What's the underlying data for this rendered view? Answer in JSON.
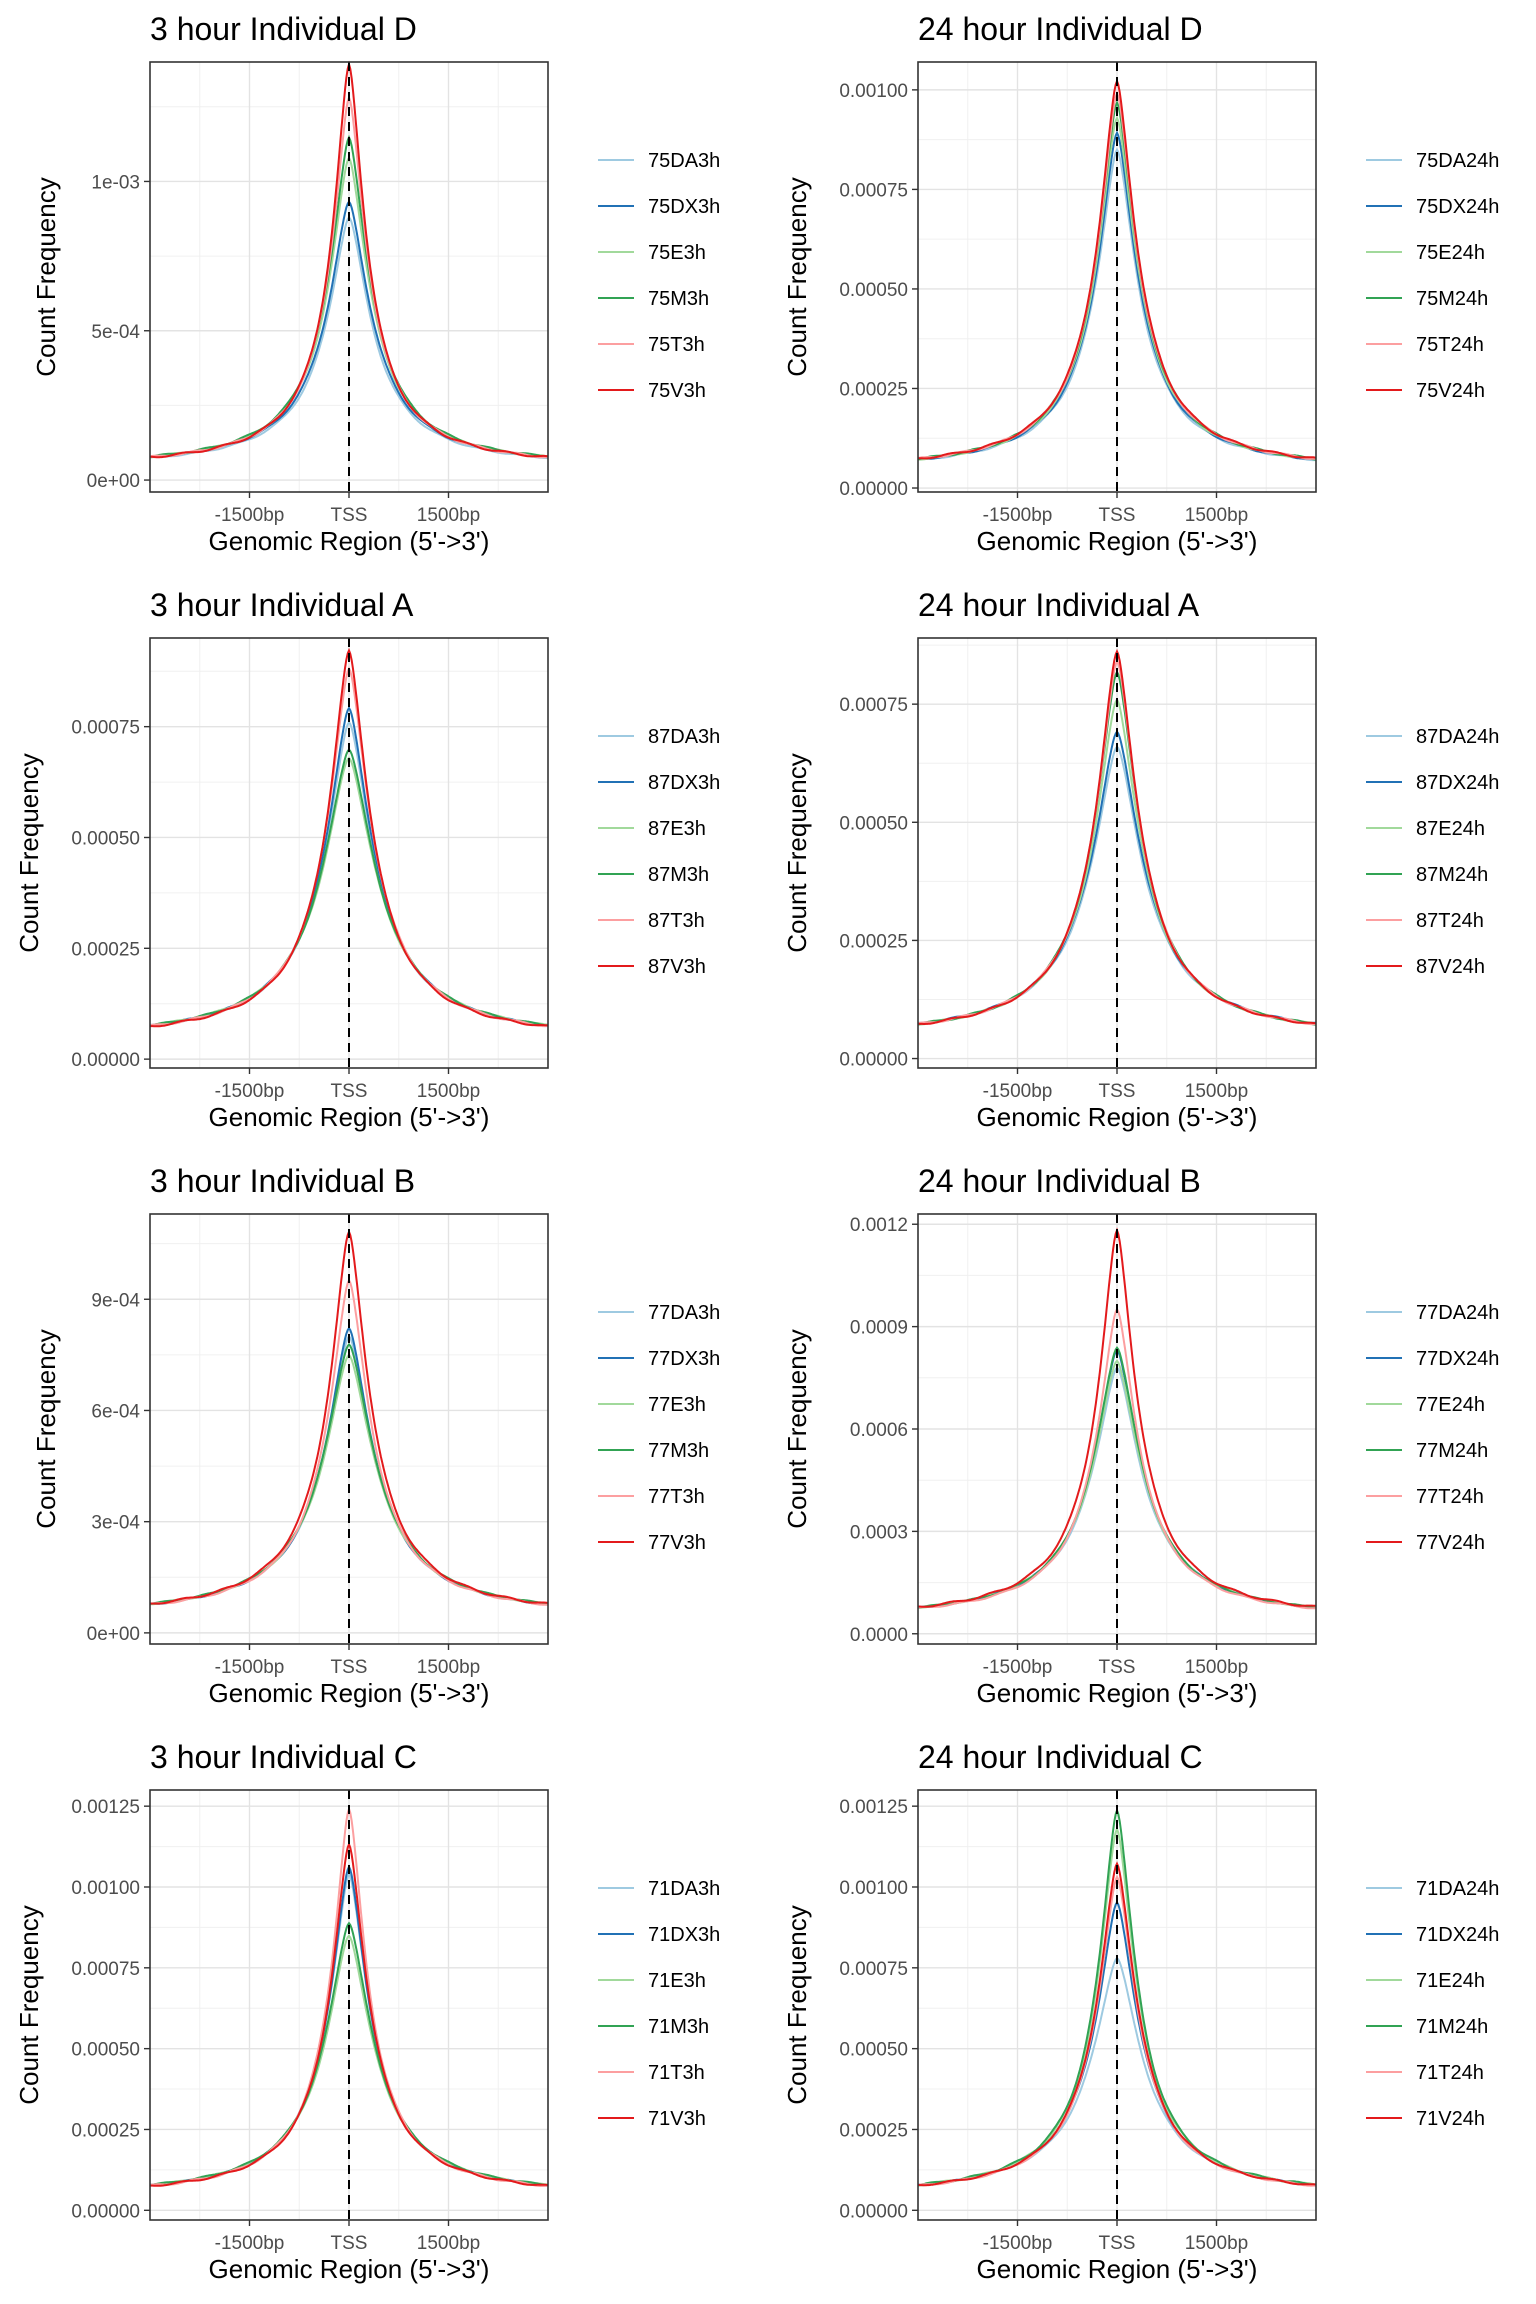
{
  "figure": {
    "colors": {
      "DA": "#9ecae1",
      "DX": "#2171b5",
      "E": "#a1d99b",
      "M": "#31a354",
      "T": "#fc9fa0",
      "V": "#e31a1c"
    },
    "x_tick_labels": [
      "-1500bp",
      "TSS",
      "1500bp"
    ],
    "x_tick_values": [
      -1500,
      0,
      1500
    ],
    "xlim": [
      -3000,
      3000
    ],
    "vline_x": 0,
    "xlabel": "Genomic Region (5'->3')",
    "ylabel": "Count Frequency"
  },
  "chart_data": [
    {
      "type": "line",
      "title": "3 hour Individual D",
      "ylim": [
        -4e-05,
        0.0014
      ],
      "y_ticks": [
        0,
        0.0005,
        0.001
      ],
      "y_tick_labels": [
        "0e+00",
        "5e-04",
        "1e-03"
      ],
      "tail": 4e-05,
      "series": [
        {
          "name": "75DA3h",
          "group": "DA",
          "peak": 0.00088,
          "width": 420
        },
        {
          "name": "75DX3h",
          "group": "DX",
          "peak": 0.00093,
          "width": 420
        },
        {
          "name": "75E3h",
          "group": "E",
          "peak": 0.00108,
          "width": 390
        },
        {
          "name": "75M3h",
          "group": "M",
          "peak": 0.00115,
          "width": 380
        },
        {
          "name": "75T3h",
          "group": "T",
          "peak": 0.00128,
          "width": 340
        },
        {
          "name": "75V3h",
          "group": "V",
          "peak": 0.00139,
          "width": 320
        }
      ]
    },
    {
      "type": "line",
      "title": "24 hour Individual D",
      "ylim": [
        -1e-05,
        0.00107
      ],
      "y_ticks": [
        0,
        0.00025,
        0.0005,
        0.00075,
        0.001
      ],
      "y_tick_labels": [
        "0.00000",
        "0.00025",
        "0.00050",
        "0.00075",
        "0.00100"
      ],
      "tail": 4e-05,
      "series": [
        {
          "name": "75DA24h",
          "group": "DA",
          "peak": 0.00085,
          "width": 400
        },
        {
          "name": "75DX24h",
          "group": "DX",
          "peak": 0.00089,
          "width": 395
        },
        {
          "name": "75E24h",
          "group": "E",
          "peak": 0.00093,
          "width": 390
        },
        {
          "name": "75M24h",
          "group": "M",
          "peak": 0.00097,
          "width": 385
        },
        {
          "name": "75T24h",
          "group": "T",
          "peak": 0.00099,
          "width": 380
        },
        {
          "name": "75V24h",
          "group": "V",
          "peak": 0.00102,
          "width": 375
        }
      ]
    },
    {
      "type": "line",
      "title": "3 hour Individual A",
      "ylim": [
        -2e-05,
        0.00095
      ],
      "y_ticks": [
        0,
        0.00025,
        0.0005,
        0.00075
      ],
      "y_tick_labels": [
        "0.00000",
        "0.00025",
        "0.00050",
        "0.00075"
      ],
      "tail": 4e-05,
      "series": [
        {
          "name": "87DA3h",
          "group": "DA",
          "peak": 0.00076,
          "width": 470
        },
        {
          "name": "87DX3h",
          "group": "DX",
          "peak": 0.00079,
          "width": 460
        },
        {
          "name": "87E3h",
          "group": "E",
          "peak": 0.00068,
          "width": 520
        },
        {
          "name": "87M3h",
          "group": "M",
          "peak": 0.0007,
          "width": 510
        },
        {
          "name": "87T3h",
          "group": "T",
          "peak": 0.00088,
          "width": 420
        },
        {
          "name": "87V3h",
          "group": "V",
          "peak": 0.00092,
          "width": 400
        }
      ]
    },
    {
      "type": "line",
      "title": "24 hour Individual A",
      "ylim": [
        -2e-05,
        0.00089
      ],
      "y_ticks": [
        0,
        0.00025,
        0.0005,
        0.00075
      ],
      "y_tick_labels": [
        "0.00000",
        "0.00025",
        "0.00050",
        "0.00075"
      ],
      "tail": 4e-05,
      "series": [
        {
          "name": "87DA24h",
          "group": "DA",
          "peak": 0.00066,
          "width": 500
        },
        {
          "name": "87DX24h",
          "group": "DX",
          "peak": 0.00069,
          "width": 490
        },
        {
          "name": "87E24h",
          "group": "E",
          "peak": 0.00076,
          "width": 450
        },
        {
          "name": "87M24h",
          "group": "M",
          "peak": 0.00082,
          "width": 430
        },
        {
          "name": "87T24h",
          "group": "T",
          "peak": 0.00084,
          "width": 420
        },
        {
          "name": "87V24h",
          "group": "V",
          "peak": 0.00086,
          "width": 410
        }
      ]
    },
    {
      "type": "line",
      "title": "3 hour Individual B",
      "ylim": [
        -3e-05,
        0.00113
      ],
      "y_ticks": [
        0,
        0.0003,
        0.0006,
        0.0009
      ],
      "y_tick_labels": [
        "0e+00",
        "3e-04",
        "6e-04",
        "9e-04"
      ],
      "tail": 4e-05,
      "series": [
        {
          "name": "77DA3h",
          "group": "DA",
          "peak": 0.0008,
          "width": 470
        },
        {
          "name": "77DX3h",
          "group": "DX",
          "peak": 0.00082,
          "width": 460
        },
        {
          "name": "77E3h",
          "group": "E",
          "peak": 0.00075,
          "width": 500
        },
        {
          "name": "77M3h",
          "group": "M",
          "peak": 0.00078,
          "width": 490
        },
        {
          "name": "77T3h",
          "group": "T",
          "peak": 0.00095,
          "width": 410
        },
        {
          "name": "77V3h",
          "group": "V",
          "peak": 0.00108,
          "width": 390
        }
      ]
    },
    {
      "type": "line",
      "title": "24 hour Individual B",
      "ylim": [
        -3e-05,
        0.00123
      ],
      "y_ticks": [
        0,
        0.0003,
        0.0006,
        0.0009,
        0.0012
      ],
      "y_tick_labels": [
        "0.0000",
        "0.0003",
        "0.0006",
        "0.0009",
        "0.0012"
      ],
      "tail": 4e-05,
      "series": [
        {
          "name": "77DA24h",
          "group": "DA",
          "peak": 0.00078,
          "width": 470
        },
        {
          "name": "77DX24h",
          "group": "DX",
          "peak": 0.00083,
          "width": 455
        },
        {
          "name": "77E24h",
          "group": "E",
          "peak": 0.0008,
          "width": 470
        },
        {
          "name": "77M24h",
          "group": "M",
          "peak": 0.00084,
          "width": 455
        },
        {
          "name": "77T24h",
          "group": "T",
          "peak": 0.00095,
          "width": 400
        },
        {
          "name": "77V24h",
          "group": "V",
          "peak": 0.00118,
          "width": 370
        }
      ]
    },
    {
      "type": "line",
      "title": "3 hour Individual C",
      "ylim": [
        -3e-05,
        0.0013
      ],
      "y_ticks": [
        0,
        0.00025,
        0.0005,
        0.00075,
        0.001,
        0.00125
      ],
      "y_tick_labels": [
        "0.00000",
        "0.00025",
        "0.00050",
        "0.00075",
        "0.00100",
        "0.00125"
      ],
      "tail": 4e-05,
      "series": [
        {
          "name": "71DA3h",
          "group": "DA",
          "peak": 0.00104,
          "width": 390
        },
        {
          "name": "71DX3h",
          "group": "DX",
          "peak": 0.00106,
          "width": 385
        },
        {
          "name": "71E3h",
          "group": "E",
          "peak": 0.00085,
          "width": 460
        },
        {
          "name": "71M3h",
          "group": "M",
          "peak": 0.00089,
          "width": 450
        },
        {
          "name": "71T3h",
          "group": "T",
          "peak": 0.00124,
          "width": 340
        },
        {
          "name": "71V3h",
          "group": "V",
          "peak": 0.00113,
          "width": 360
        }
      ]
    },
    {
      "type": "line",
      "title": "24 hour Individual C",
      "ylim": [
        -3e-05,
        0.0013
      ],
      "y_ticks": [
        0,
        0.00025,
        0.0005,
        0.00075,
        0.001,
        0.00125
      ],
      "y_tick_labels": [
        "0.00000",
        "0.00025",
        "0.00050",
        "0.00075",
        "0.00100",
        "0.00125"
      ],
      "tail": 4e-05,
      "series": [
        {
          "name": "71DA24h",
          "group": "DA",
          "peak": 0.00078,
          "width": 480
        },
        {
          "name": "71DX24h",
          "group": "DX",
          "peak": 0.00095,
          "width": 420
        },
        {
          "name": "71E24h",
          "group": "E",
          "peak": 0.00118,
          "width": 370
        },
        {
          "name": "71M24h",
          "group": "M",
          "peak": 0.00124,
          "width": 360
        },
        {
          "name": "71T24h",
          "group": "T",
          "peak": 0.00103,
          "width": 390
        },
        {
          "name": "71V24h",
          "group": "V",
          "peak": 0.00107,
          "width": 385
        }
      ]
    }
  ]
}
